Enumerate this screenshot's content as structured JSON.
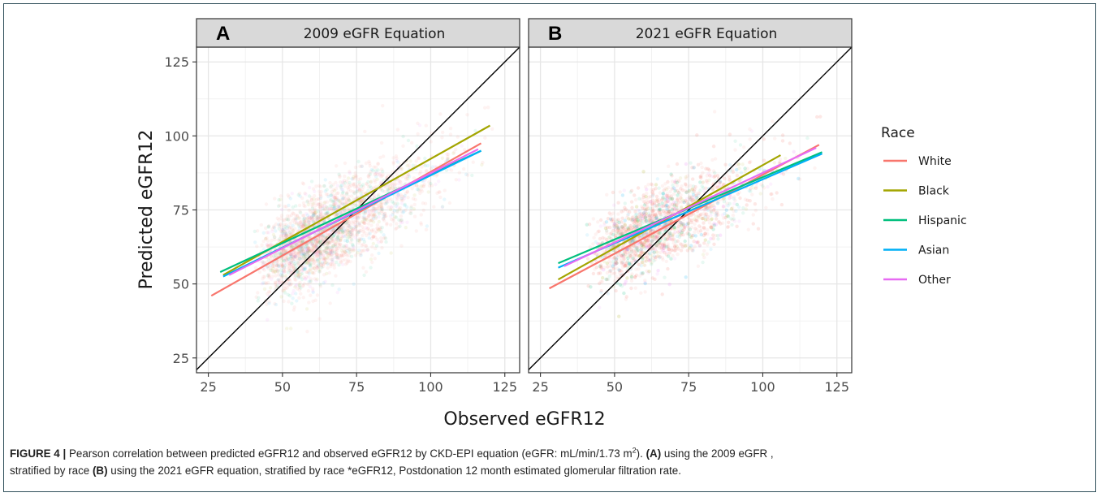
{
  "chart_data": {
    "type": "scatter",
    "xlabel": "Observed eGFR12",
    "ylabel": "Predicted eGFR12",
    "xlim": [
      21,
      130
    ],
    "ylim": [
      20,
      130
    ],
    "x_ticks": [
      25,
      50,
      75,
      100,
      125
    ],
    "y_ticks": [
      25,
      50,
      75,
      100,
      125
    ],
    "x_tick_labels": [
      "25",
      "50",
      "75",
      "100",
      "125"
    ],
    "y_tick_labels": [
      "25",
      "50",
      "75",
      "100",
      "125"
    ],
    "grid": true,
    "reference_line": "identity (y = x)",
    "legend": {
      "title": "Race",
      "placement": "right",
      "entries": [
        "White",
        "Black",
        "Hispanic",
        "Asian",
        "Other"
      ]
    },
    "series_colors": {
      "White": "#F8766D",
      "Black": "#A3A500",
      "Hispanic": "#00BF7D",
      "Asian": "#00B0F6",
      "Other": "#E76BF3"
    },
    "panels": [
      {
        "tag": "A",
        "strip_title": "2009 eGFR Equation",
        "fit_lines": [
          {
            "name": "White",
            "x": [
              26,
              117
            ],
            "y": [
              46,
              97.5
            ]
          },
          {
            "name": "Black",
            "x": [
              30,
              120
            ],
            "y": [
              53,
              103.5
            ]
          },
          {
            "name": "Hispanic",
            "x": [
              29,
              117
            ],
            "y": [
              54,
              95
            ]
          },
          {
            "name": "Asian",
            "x": [
              30,
              117
            ],
            "y": [
              52.5,
              95
            ]
          },
          {
            "name": "Other",
            "x": [
              32,
              116
            ],
            "y": [
              53,
              95.5
            ]
          }
        ]
      },
      {
        "tag": "B",
        "strip_title": "2021 eGFR Equation",
        "fit_lines": [
          {
            "name": "White",
            "x": [
              28,
              119
            ],
            "y": [
              48.5,
              97
            ]
          },
          {
            "name": "Black",
            "x": [
              31,
              106
            ],
            "y": [
              51.5,
              93.5
            ]
          },
          {
            "name": "Hispanic",
            "x": [
              31,
              120
            ],
            "y": [
              57,
              94.5
            ]
          },
          {
            "name": "Asian",
            "x": [
              31,
              120
            ],
            "y": [
              55.5,
              94
            ]
          },
          {
            "name": "Other",
            "x": [
              33,
              118
            ],
            "y": [
              56,
              96
            ]
          }
        ]
      }
    ]
  },
  "caption": {
    "figure_label": "FIGURE 4 |",
    "text_1": " Pearson correlation between predicted eGFR12 and observed eGFR12 by CKD-EPI equation (eGFR: mL/min/1.73 m",
    "superscript": "2",
    "text_2": "). ",
    "label_a": "(A)",
    "text_3": " using the 2009 eGFR ,",
    "text_4": "stratified by race ",
    "label_b": "(B)",
    "text_5": " using the 2021 eGFR equation, stratified by race *eGFR12, Postdonation 12 month estimated glomerular filtration rate."
  }
}
